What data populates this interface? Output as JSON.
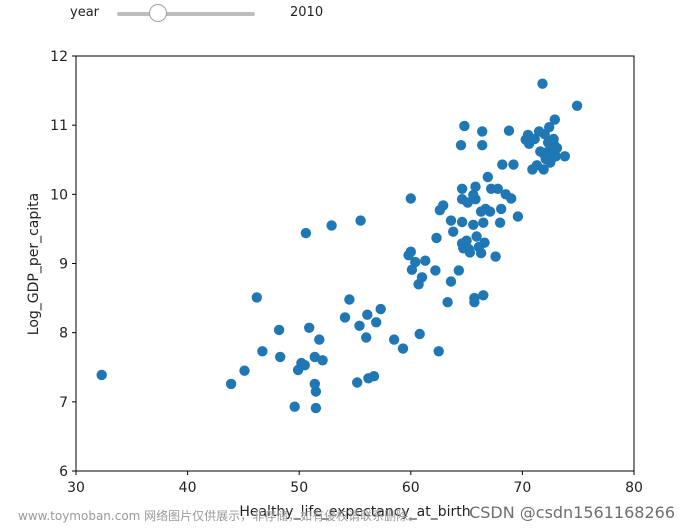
{
  "slider": {
    "label": "year",
    "value": "2010",
    "min": 2005,
    "max": 2022,
    "current": 2010
  },
  "chart_data": {
    "type": "scatter",
    "title": "",
    "xlabel": "Healthy_life_expectancy_at_birth",
    "ylabel": "Log_GDP_per_capita",
    "xlim": [
      30,
      80
    ],
    "ylim": [
      6,
      12
    ],
    "xticks": [
      30,
      40,
      50,
      60,
      70,
      80
    ],
    "yticks": [
      6,
      7,
      8,
      9,
      10,
      11,
      12
    ],
    "grid": false,
    "marker_color": "#1f77b4",
    "series": [
      {
        "points": [
          [
            32.3,
            7.39
          ],
          [
            43.9,
            7.26
          ],
          [
            45.1,
            7.45
          ],
          [
            46.2,
            8.51
          ],
          [
            46.7,
            7.73
          ],
          [
            48.2,
            8.04
          ],
          [
            48.3,
            7.65
          ],
          [
            49.6,
            6.93
          ],
          [
            49.9,
            7.46
          ],
          [
            50.2,
            7.56
          ],
          [
            50.5,
            7.53
          ],
          [
            50.6,
            9.44
          ],
          [
            50.9,
            8.07
          ],
          [
            51.4,
            7.65
          ],
          [
            51.4,
            7.26
          ],
          [
            51.5,
            6.91
          ],
          [
            51.5,
            7.15
          ],
          [
            51.8,
            7.9
          ],
          [
            52.1,
            7.6
          ],
          [
            52.9,
            9.55
          ],
          [
            54.1,
            8.22
          ],
          [
            54.5,
            8.48
          ],
          [
            55.2,
            7.28
          ],
          [
            55.5,
            9.62
          ],
          [
            55.4,
            8.1
          ],
          [
            56.1,
            8.26
          ],
          [
            56.0,
            7.93
          ],
          [
            56.2,
            7.34
          ],
          [
            56.7,
            7.37
          ],
          [
            56.9,
            8.15
          ],
          [
            57.3,
            8.34
          ],
          [
            58.5,
            7.9
          ],
          [
            59.3,
            7.77
          ],
          [
            60.0,
            9.94
          ],
          [
            59.8,
            9.12
          ],
          [
            60.0,
            9.17
          ],
          [
            60.1,
            8.91
          ],
          [
            60.4,
            9.02
          ],
          [
            60.7,
            8.7
          ],
          [
            60.8,
            7.98
          ],
          [
            61.0,
            8.8
          ],
          [
            61.3,
            9.04
          ],
          [
            62.2,
            8.9
          ],
          [
            62.3,
            9.37
          ],
          [
            62.5,
            7.73
          ],
          [
            62.6,
            9.77
          ],
          [
            62.9,
            9.84
          ],
          [
            63.3,
            8.44
          ],
          [
            63.6,
            8.74
          ],
          [
            63.6,
            9.62
          ],
          [
            63.8,
            9.46
          ],
          [
            64.3,
            8.9
          ],
          [
            64.5,
            10.71
          ],
          [
            64.6,
            10.08
          ],
          [
            64.6,
            9.93
          ],
          [
            64.6,
            9.6
          ],
          [
            64.6,
            9.29
          ],
          [
            64.7,
            9.22
          ],
          [
            64.8,
            10.99
          ],
          [
            65.0,
            9.33
          ],
          [
            65.1,
            9.88
          ],
          [
            65.2,
            9.21
          ],
          [
            65.3,
            9.16
          ],
          [
            65.6,
            9.99
          ],
          [
            65.6,
            9.56
          ],
          [
            65.7,
            8.5
          ],
          [
            65.7,
            8.44
          ],
          [
            65.8,
            10.11
          ],
          [
            65.8,
            9.93
          ],
          [
            65.9,
            9.39
          ],
          [
            66.1,
            9.24
          ],
          [
            66.3,
            9.15
          ],
          [
            66.3,
            9.75
          ],
          [
            66.4,
            10.71
          ],
          [
            66.4,
            10.91
          ],
          [
            66.5,
            8.54
          ],
          [
            66.5,
            9.59
          ],
          [
            66.6,
            9.3
          ],
          [
            66.7,
            9.79
          ],
          [
            66.9,
            10.25
          ],
          [
            67.1,
            9.75
          ],
          [
            67.2,
            10.08
          ],
          [
            67.6,
            9.1
          ],
          [
            67.8,
            10.08
          ],
          [
            68.0,
            9.59
          ],
          [
            68.1,
            9.79
          ],
          [
            68.2,
            10.43
          ],
          [
            68.5,
            10.0
          ],
          [
            68.8,
            10.92
          ],
          [
            69.0,
            9.94
          ],
          [
            69.2,
            10.43
          ],
          [
            69.6,
            9.68
          ],
          [
            70.3,
            10.79
          ],
          [
            70.5,
            10.86
          ],
          [
            70.6,
            10.73
          ],
          [
            70.9,
            10.36
          ],
          [
            71.1,
            10.8
          ],
          [
            71.3,
            10.42
          ],
          [
            71.5,
            10.91
          ],
          [
            71.6,
            10.62
          ],
          [
            71.8,
            11.6
          ],
          [
            71.9,
            10.36
          ],
          [
            72.0,
            10.87
          ],
          [
            72.0,
            10.57
          ],
          [
            72.1,
            10.51
          ],
          [
            72.3,
            10.75
          ],
          [
            72.3,
            10.62
          ],
          [
            72.4,
            10.97
          ],
          [
            72.4,
            10.56
          ],
          [
            72.5,
            10.46
          ],
          [
            72.6,
            10.68
          ],
          [
            72.7,
            10.53
          ],
          [
            72.8,
            10.8
          ],
          [
            72.8,
            10.73
          ],
          [
            72.9,
            11.08
          ],
          [
            73.1,
            10.67
          ],
          [
            73.0,
            10.55
          ],
          [
            73.8,
            10.55
          ],
          [
            74.9,
            11.28
          ]
        ]
      }
    ]
  },
  "watermark": {
    "left_text": "www.toymoban.com 网络图片仅供展示，非存储，如有侵权请联系删除。",
    "right_text": "CSDN @csdn1561168266"
  }
}
